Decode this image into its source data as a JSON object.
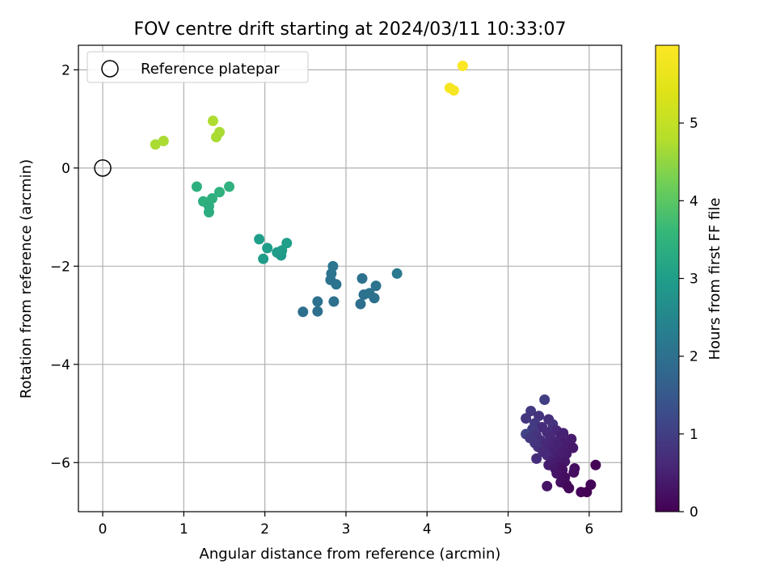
{
  "chart_data": {
    "type": "scatter",
    "title": "FOV centre drift starting at 2024/03/11 10:33:07",
    "xlabel": "Angular distance from reference (arcmin)",
    "ylabel": "Rotation from reference (arcmin)",
    "xlim": [
      -0.3,
      6.4
    ],
    "ylim": [
      -7.0,
      2.5
    ],
    "xticks": [
      0,
      1,
      2,
      3,
      4,
      5,
      6
    ],
    "yticks": [
      -6,
      -4,
      -2,
      0,
      2
    ],
    "grid": true,
    "legend": {
      "position": "top-left",
      "entries": [
        "Reference platepar"
      ]
    },
    "reference_point": {
      "x": 0,
      "y": 0
    },
    "colorbar": {
      "label": "Hours from first FF file",
      "colormap": "viridis",
      "range": [
        0,
        6.0
      ],
      "ticks": [
        0,
        1,
        2,
        3,
        4,
        5
      ]
    },
    "points": [
      {
        "x": 5.45,
        "y": -4.72,
        "c": 1.0
      },
      {
        "x": 5.28,
        "y": -4.95,
        "c": 0.9
      },
      {
        "x": 5.38,
        "y": -5.05,
        "c": 0.8
      },
      {
        "x": 5.22,
        "y": -5.1,
        "c": 0.85
      },
      {
        "x": 5.5,
        "y": -5.12,
        "c": 0.75
      },
      {
        "x": 5.33,
        "y": -5.2,
        "c": 0.9
      },
      {
        "x": 5.55,
        "y": -5.22,
        "c": 0.8
      },
      {
        "x": 5.42,
        "y": -5.28,
        "c": 0.7
      },
      {
        "x": 5.3,
        "y": -5.32,
        "c": 0.95
      },
      {
        "x": 5.6,
        "y": -5.35,
        "c": 0.6
      },
      {
        "x": 5.48,
        "y": -5.38,
        "c": 0.7
      },
      {
        "x": 5.68,
        "y": -5.4,
        "c": 0.5
      },
      {
        "x": 5.22,
        "y": -5.42,
        "c": 1.1
      },
      {
        "x": 5.35,
        "y": -5.45,
        "c": 0.8
      },
      {
        "x": 5.52,
        "y": -5.48,
        "c": 0.65
      },
      {
        "x": 5.27,
        "y": -5.5,
        "c": 0.9
      },
      {
        "x": 5.65,
        "y": -5.5,
        "c": 0.5
      },
      {
        "x": 5.78,
        "y": -5.52,
        "c": 0.4
      },
      {
        "x": 5.4,
        "y": -5.55,
        "c": 0.75
      },
      {
        "x": 5.58,
        "y": -5.58,
        "c": 0.55
      },
      {
        "x": 5.33,
        "y": -5.6,
        "c": 0.85
      },
      {
        "x": 5.7,
        "y": -5.6,
        "c": 0.45
      },
      {
        "x": 5.47,
        "y": -5.62,
        "c": 0.6
      },
      {
        "x": 5.62,
        "y": -5.65,
        "c": 0.5
      },
      {
        "x": 5.37,
        "y": -5.68,
        "c": 0.8
      },
      {
        "x": 5.8,
        "y": -5.7,
        "c": 0.35
      },
      {
        "x": 5.52,
        "y": -5.72,
        "c": 0.55
      },
      {
        "x": 5.68,
        "y": -5.75,
        "c": 0.45
      },
      {
        "x": 5.43,
        "y": -5.78,
        "c": 0.65
      },
      {
        "x": 5.57,
        "y": -5.8,
        "c": 0.5
      },
      {
        "x": 5.72,
        "y": -5.82,
        "c": 0.4
      },
      {
        "x": 5.48,
        "y": -5.85,
        "c": 0.6
      },
      {
        "x": 5.63,
        "y": -5.88,
        "c": 0.45
      },
      {
        "x": 5.35,
        "y": -5.92,
        "c": 0.7
      },
      {
        "x": 5.55,
        "y": -5.95,
        "c": 0.5
      },
      {
        "x": 5.7,
        "y": -5.98,
        "c": 0.35
      },
      {
        "x": 5.6,
        "y": -6.0,
        "c": 0.4
      },
      {
        "x": 5.5,
        "y": -6.05,
        "c": 0.45
      },
      {
        "x": 6.08,
        "y": -6.05,
        "c": 0.05
      },
      {
        "x": 5.65,
        "y": -6.08,
        "c": 0.3
      },
      {
        "x": 5.58,
        "y": -6.12,
        "c": 0.35
      },
      {
        "x": 5.82,
        "y": -6.12,
        "c": 0.2
      },
      {
        "x": 5.67,
        "y": -6.15,
        "c": 0.25
      },
      {
        "x": 5.81,
        "y": -6.2,
        "c": 0.2
      },
      {
        "x": 5.6,
        "y": -6.22,
        "c": 0.3
      },
      {
        "x": 5.7,
        "y": -6.3,
        "c": 0.2
      },
      {
        "x": 5.65,
        "y": -6.4,
        "c": 0.25
      },
      {
        "x": 5.72,
        "y": -6.45,
        "c": 0.15
      },
      {
        "x": 6.02,
        "y": -6.45,
        "c": 0.05
      },
      {
        "x": 5.48,
        "y": -6.48,
        "c": 0.3
      },
      {
        "x": 5.75,
        "y": -6.52,
        "c": 0.12
      },
      {
        "x": 5.9,
        "y": -6.6,
        "c": 0.08
      },
      {
        "x": 5.97,
        "y": -6.6,
        "c": 0.02
      },
      {
        "x": 2.84,
        "y": -2.0,
        "c": 2.1
      },
      {
        "x": 2.82,
        "y": -2.15,
        "c": 2.1
      },
      {
        "x": 2.81,
        "y": -2.28,
        "c": 2.05
      },
      {
        "x": 2.88,
        "y": -2.37,
        "c": 2.05
      },
      {
        "x": 2.65,
        "y": -2.72,
        "c": 2.0
      },
      {
        "x": 2.85,
        "y": -2.72,
        "c": 2.0
      },
      {
        "x": 2.47,
        "y": -2.93,
        "c": 1.95
      },
      {
        "x": 2.65,
        "y": -2.92,
        "c": 1.95
      },
      {
        "x": 3.2,
        "y": -2.25,
        "c": 2.0
      },
      {
        "x": 3.22,
        "y": -2.58,
        "c": 2.0
      },
      {
        "x": 3.29,
        "y": -2.55,
        "c": 2.05
      },
      {
        "x": 3.37,
        "y": -2.4,
        "c": 2.05
      },
      {
        "x": 3.35,
        "y": -2.65,
        "c": 2.0
      },
      {
        "x": 3.18,
        "y": -2.77,
        "c": 1.95
      },
      {
        "x": 3.63,
        "y": -2.15,
        "c": 2.2
      },
      {
        "x": 1.93,
        "y": -1.45,
        "c": 3.0
      },
      {
        "x": 2.03,
        "y": -1.63,
        "c": 3.0
      },
      {
        "x": 1.98,
        "y": -1.85,
        "c": 2.95
      },
      {
        "x": 2.15,
        "y": -1.72,
        "c": 2.95
      },
      {
        "x": 2.2,
        "y": -1.78,
        "c": 2.9
      },
      {
        "x": 2.21,
        "y": -1.68,
        "c": 2.95
      },
      {
        "x": 2.27,
        "y": -1.53,
        "c": 3.0
      },
      {
        "x": 1.16,
        "y": -0.38,
        "c": 3.4
      },
      {
        "x": 1.24,
        "y": -0.68,
        "c": 3.4
      },
      {
        "x": 1.31,
        "y": -0.78,
        "c": 3.35
      },
      {
        "x": 1.31,
        "y": -0.9,
        "c": 3.35
      },
      {
        "x": 1.35,
        "y": -0.62,
        "c": 3.4
      },
      {
        "x": 1.44,
        "y": -0.49,
        "c": 3.45
      },
      {
        "x": 1.56,
        "y": -0.38,
        "c": 3.45
      },
      {
        "x": 0.65,
        "y": 0.48,
        "c": 4.7
      },
      {
        "x": 0.75,
        "y": 0.55,
        "c": 4.7
      },
      {
        "x": 1.36,
        "y": 0.96,
        "c": 4.75
      },
      {
        "x": 1.44,
        "y": 0.73,
        "c": 4.7
      },
      {
        "x": 1.4,
        "y": 0.63,
        "c": 4.7
      },
      {
        "x": 4.28,
        "y": 1.63,
        "c": 5.85
      },
      {
        "x": 4.33,
        "y": 1.58,
        "c": 5.85
      },
      {
        "x": 4.44,
        "y": 2.08,
        "c": 5.95
      }
    ]
  }
}
